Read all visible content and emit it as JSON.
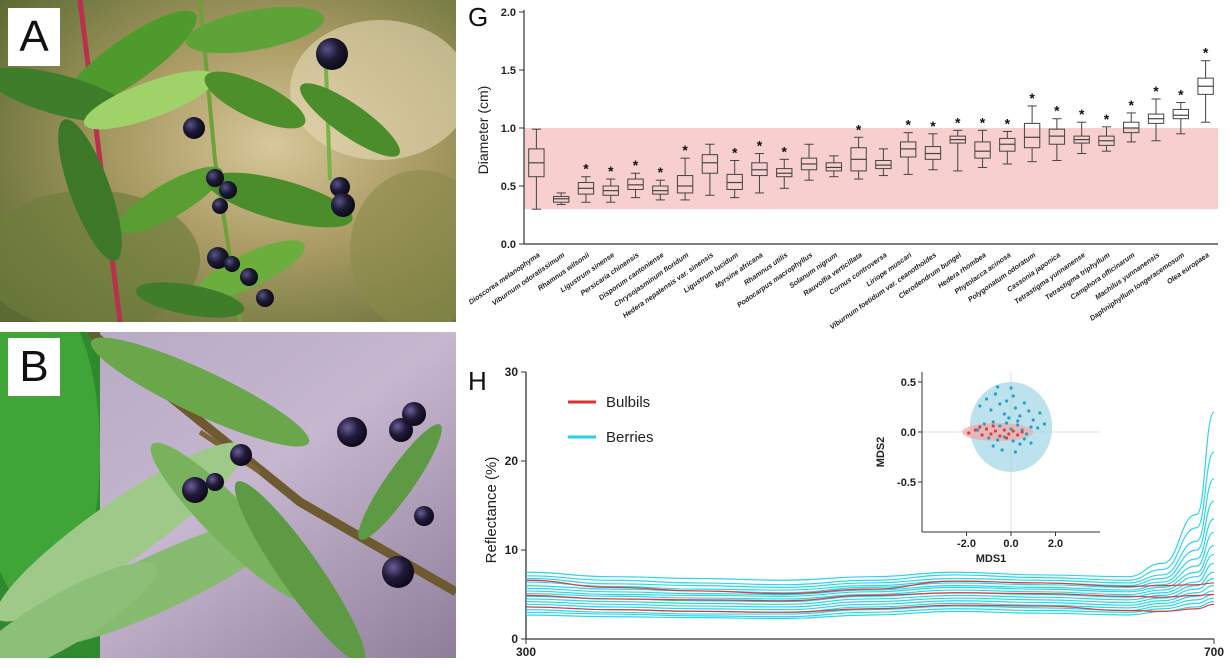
{
  "panels": {
    "a": "A",
    "b": "B",
    "g": "G",
    "h": "H"
  },
  "colors": {
    "reference_band": "#f7cfcf",
    "bulbils": "#e03131",
    "berries": "#22d3e6",
    "box": "#444444",
    "leaf_dark": "#3f7d2a",
    "leaf_light": "#9fd36a",
    "berry": "#1d1a33"
  },
  "chart_data": [
    {
      "type": "box",
      "panel": "G",
      "ylabel": "Diameter (cm)",
      "ylim": [
        0.0,
        2.0
      ],
      "yticks": [
        "0.0",
        "0.5",
        "1.0",
        "1.5",
        "2.0"
      ],
      "reference_band": [
        0.3,
        1.0
      ],
      "significance_mark": "*",
      "categories": [
        "Dioscorea melanophyma",
        "Viburnum odoratissimum",
        "Rhamnus wilsonii",
        "Ligustrum sinense",
        "Persicaria chinensis",
        "Disporum cantoniense",
        "Chrysojasminum floridum",
        "Hedera nepalensis var. sinensis",
        "Ligustrum lucidum",
        "Myrsine africana",
        "Rhamnus utilis",
        "Podocarpus macrophyllus",
        "Solanum nigrum",
        "Rauvolfia verticillata",
        "Cornus controversa",
        "Liriope muscari",
        "Viburnum foetidum var. ceanothoides",
        "Clerodendrum bungei",
        "Hedera rhombea",
        "Phytolacca acinosa",
        "Polygonatum odoratum",
        "Cassonia japonica",
        "Tetrastigma yunnanense",
        "Tetrastigma triphyllum",
        "Camphora officinarum",
        "Machilus yunnanensis",
        "Daphniphyllum longeracemosum",
        "Olea europaea"
      ],
      "boxes": [
        {
          "min": 0.3,
          "q1": 0.58,
          "median": 0.7,
          "q3": 0.82,
          "max": 0.99,
          "sig": false
        },
        {
          "min": 0.34,
          "q1": 0.36,
          "median": 0.39,
          "q3": 0.41,
          "max": 0.44,
          "sig": false
        },
        {
          "min": 0.36,
          "q1": 0.43,
          "median": 0.48,
          "q3": 0.53,
          "max": 0.58,
          "sig": true
        },
        {
          "min": 0.36,
          "q1": 0.42,
          "median": 0.46,
          "q3": 0.5,
          "max": 0.56,
          "sig": true
        },
        {
          "min": 0.4,
          "q1": 0.47,
          "median": 0.51,
          "q3": 0.56,
          "max": 0.61,
          "sig": true
        },
        {
          "min": 0.38,
          "q1": 0.43,
          "median": 0.46,
          "q3": 0.5,
          "max": 0.55,
          "sig": true
        },
        {
          "min": 0.38,
          "q1": 0.44,
          "median": 0.5,
          "q3": 0.59,
          "max": 0.74,
          "sig": true
        },
        {
          "min": 0.42,
          "q1": 0.61,
          "median": 0.7,
          "q3": 0.77,
          "max": 0.86,
          "sig": false
        },
        {
          "min": 0.4,
          "q1": 0.47,
          "median": 0.53,
          "q3": 0.6,
          "max": 0.72,
          "sig": true
        },
        {
          "min": 0.44,
          "q1": 0.59,
          "median": 0.64,
          "q3": 0.7,
          "max": 0.78,
          "sig": true
        },
        {
          "min": 0.48,
          "q1": 0.58,
          "median": 0.61,
          "q3": 0.65,
          "max": 0.73,
          "sig": true
        },
        {
          "min": 0.55,
          "q1": 0.64,
          "median": 0.69,
          "q3": 0.74,
          "max": 0.86,
          "sig": false
        },
        {
          "min": 0.58,
          "q1": 0.63,
          "median": 0.66,
          "q3": 0.7,
          "max": 0.76,
          "sig": false
        },
        {
          "min": 0.56,
          "q1": 0.63,
          "median": 0.73,
          "q3": 0.83,
          "max": 0.92,
          "sig": true
        },
        {
          "min": 0.59,
          "q1": 0.65,
          "median": 0.68,
          "q3": 0.72,
          "max": 0.82,
          "sig": false
        },
        {
          "min": 0.6,
          "q1": 0.75,
          "median": 0.82,
          "q3": 0.88,
          "max": 0.96,
          "sig": true
        },
        {
          "min": 0.64,
          "q1": 0.73,
          "median": 0.78,
          "q3": 0.84,
          "max": 0.95,
          "sig": true
        },
        {
          "min": 0.63,
          "q1": 0.87,
          "median": 0.9,
          "q3": 0.93,
          "max": 0.98,
          "sig": true
        },
        {
          "min": 0.66,
          "q1": 0.74,
          "median": 0.8,
          "q3": 0.88,
          "max": 0.98,
          "sig": true
        },
        {
          "min": 0.69,
          "q1": 0.8,
          "median": 0.86,
          "q3": 0.91,
          "max": 0.97,
          "sig": true
        },
        {
          "min": 0.71,
          "q1": 0.83,
          "median": 0.92,
          "q3": 1.04,
          "max": 1.19,
          "sig": true
        },
        {
          "min": 0.72,
          "q1": 0.86,
          "median": 0.93,
          "q3": 0.99,
          "max": 1.08,
          "sig": true
        },
        {
          "min": 0.78,
          "q1": 0.87,
          "median": 0.9,
          "q3": 0.93,
          "max": 1.05,
          "sig": true
        },
        {
          "min": 0.8,
          "q1": 0.85,
          "median": 0.89,
          "q3": 0.93,
          "max": 1.01,
          "sig": true
        },
        {
          "min": 0.88,
          "q1": 0.96,
          "median": 1.0,
          "q3": 1.05,
          "max": 1.13,
          "sig": true
        },
        {
          "min": 0.89,
          "q1": 1.04,
          "median": 1.08,
          "q3": 1.12,
          "max": 1.25,
          "sig": true
        },
        {
          "min": 0.95,
          "q1": 1.08,
          "median": 1.11,
          "q3": 1.16,
          "max": 1.22,
          "sig": true
        },
        {
          "min": 1.05,
          "q1": 1.29,
          "median": 1.36,
          "q3": 1.43,
          "max": 1.58,
          "sig": true
        }
      ]
    },
    {
      "type": "line",
      "panel": "H",
      "ylabel": "Reflectance (%)",
      "ylim": [
        0,
        30
      ],
      "yticks": [
        "0",
        "10",
        "20",
        "30"
      ],
      "xlim": [
        300,
        700
      ],
      "xticks": [
        "300",
        "700"
      ],
      "legend": [
        "Bulbils",
        "Berries"
      ],
      "x": [
        300,
        350,
        400,
        450,
        500,
        550,
        600,
        650,
        670,
        690,
        700
      ],
      "series": [
        {
          "name": "Bulbils",
          "values": [
            6.6,
            5.8,
            5.4,
            5.1,
            5.6,
            6.5,
            6.3,
            5.9,
            6.0,
            6.1,
            6.3
          ]
        },
        {
          "name": "Bulbils",
          "values": [
            4.9,
            4.5,
            4.4,
            4.3,
            4.9,
            5.2,
            5.1,
            4.8,
            4.7,
            4.9,
            5.0
          ]
        },
        {
          "name": "Bulbils",
          "values": [
            3.6,
            3.3,
            3.1,
            3.0,
            3.4,
            3.8,
            3.7,
            3.2,
            3.1,
            3.4,
            3.9
          ]
        },
        {
          "name": "Berries",
          "values": [
            7.5,
            7.0,
            6.8,
            6.6,
            7.0,
            7.5,
            7.2,
            7.0,
            8.5,
            14.0,
            25.5
          ]
        },
        {
          "name": "Berries",
          "values": [
            7.1,
            6.6,
            6.3,
            6.1,
            6.6,
            7.2,
            6.9,
            6.6,
            7.8,
            12.5,
            21.0
          ]
        },
        {
          "name": "Berries",
          "values": [
            6.8,
            6.2,
            6.0,
            5.8,
            6.3,
            6.8,
            6.6,
            6.3,
            7.2,
            11.0,
            18.0
          ]
        },
        {
          "name": "Berries",
          "values": [
            6.4,
            5.9,
            5.6,
            5.5,
            6.0,
            6.5,
            6.3,
            6.0,
            6.8,
            10.0,
            15.5
          ]
        },
        {
          "name": "Berries",
          "values": [
            6.0,
            5.6,
            5.4,
            5.2,
            5.8,
            6.3,
            6.1,
            5.8,
            6.4,
            9.0,
            13.5
          ]
        },
        {
          "name": "Berries",
          "values": [
            5.7,
            5.3,
            5.1,
            5.0,
            5.5,
            6.0,
            5.8,
            5.5,
            6.1,
            8.2,
            12.0
          ]
        },
        {
          "name": "Berries",
          "values": [
            5.4,
            5.0,
            4.9,
            4.8,
            5.3,
            5.8,
            5.6,
            5.3,
            5.8,
            7.5,
            10.5
          ]
        },
        {
          "name": "Berries",
          "values": [
            5.1,
            4.8,
            4.6,
            4.5,
            5.0,
            5.5,
            5.3,
            5.0,
            5.5,
            7.0,
            9.5
          ]
        },
        {
          "name": "Berries",
          "values": [
            4.8,
            4.5,
            4.3,
            4.2,
            4.8,
            5.2,
            5.0,
            4.7,
            5.2,
            6.4,
            8.5
          ]
        },
        {
          "name": "Berries",
          "values": [
            4.5,
            4.2,
            4.0,
            3.9,
            4.5,
            4.9,
            4.7,
            4.4,
            4.9,
            6.0,
            7.5
          ]
        },
        {
          "name": "Berries",
          "values": [
            4.2,
            3.9,
            3.7,
            3.6,
            4.2,
            4.6,
            4.4,
            4.1,
            4.6,
            5.6,
            6.8
          ]
        },
        {
          "name": "Berries",
          "values": [
            3.9,
            3.6,
            3.4,
            3.3,
            3.9,
            4.3,
            4.1,
            3.8,
            4.3,
            5.2,
            6.0
          ]
        },
        {
          "name": "Berries",
          "values": [
            3.6,
            3.3,
            3.1,
            3.0,
            3.6,
            4.0,
            3.8,
            3.5,
            4.0,
            4.8,
            5.4
          ]
        },
        {
          "name": "Berries",
          "values": [
            3.3,
            3.0,
            2.8,
            2.8,
            3.3,
            3.7,
            3.5,
            3.2,
            3.7,
            4.4,
            5.0
          ]
        },
        {
          "name": "Berries",
          "values": [
            3.0,
            2.8,
            2.6,
            2.5,
            3.0,
            3.4,
            3.2,
            3.0,
            3.4,
            4.0,
            4.6
          ]
        },
        {
          "name": "Berries",
          "values": [
            2.7,
            2.5,
            2.4,
            2.3,
            2.7,
            3.1,
            2.9,
            2.7,
            3.1,
            3.6,
            4.2
          ]
        }
      ]
    },
    {
      "type": "scatter",
      "panel": "H-inset",
      "xlabel": "MDS1",
      "ylabel": "MDS2",
      "xlim": [
        -4.0,
        4.0
      ],
      "ylim": [
        -1.0,
        0.6
      ],
      "xticks": [
        "-2.0",
        "0.0",
        "2.0"
      ],
      "yticks": [
        "0.5",
        "0.0",
        "-0.5"
      ],
      "berries_hull": {
        "cx": 0.0,
        "cy": 0.05,
        "rx": 1.85,
        "ry": 0.45
      },
      "bulbils_hull": {
        "cx": -0.6,
        "cy": 0.0,
        "rx": 1.6,
        "ry": 0.09
      },
      "berries_points": [
        [
          -1.4,
          0.26
        ],
        [
          -1.1,
          0.33
        ],
        [
          -0.9,
          0.22
        ],
        [
          -0.7,
          0.38
        ],
        [
          -0.5,
          0.28
        ],
        [
          -0.3,
          0.18
        ],
        [
          -0.2,
          0.31
        ],
        [
          0.1,
          0.36
        ],
        [
          0.2,
          0.24
        ],
        [
          0.4,
          0.16
        ],
        [
          0.6,
          0.29
        ],
        [
          0.8,
          0.21
        ],
        [
          1.0,
          0.12
        ],
        [
          1.3,
          0.19
        ],
        [
          -1.2,
          0.08
        ],
        [
          -0.8,
          0.1
        ],
        [
          -0.5,
          0.06
        ],
        [
          -0.2,
          0.09
        ],
        [
          0.0,
          0.03
        ],
        [
          0.3,
          0.07
        ],
        [
          0.5,
          0.02
        ],
        [
          0.7,
          -0.02
        ],
        [
          0.9,
          0.05
        ],
        [
          1.2,
          0.04
        ],
        [
          -1.0,
          -0.06
        ],
        [
          -0.6,
          -0.08
        ],
        [
          -0.3,
          -0.05
        ],
        [
          0.1,
          -0.09
        ],
        [
          0.4,
          -0.12
        ],
        [
          0.6,
          -0.07
        ],
        [
          -0.4,
          -0.18
        ],
        [
          0.2,
          -0.2
        ],
        [
          -0.8,
          -0.14
        ],
        [
          0.9,
          -0.11
        ],
        [
          -0.1,
          0.14
        ],
        [
          0.3,
          0.11
        ],
        [
          -1.5,
          0.02
        ],
        [
          1.5,
          0.08
        ],
        [
          0.0,
          0.44
        ],
        [
          -0.6,
          0.45
        ]
      ],
      "bulbils_points": [
        [
          -1.9,
          -0.01
        ],
        [
          -1.6,
          0.02
        ],
        [
          -1.3,
          -0.03
        ],
        [
          -1.1,
          0.03
        ],
        [
          -0.9,
          -0.02
        ],
        [
          -0.7,
          0.01
        ],
        [
          -0.5,
          -0.04
        ],
        [
          -0.3,
          0.02
        ],
        [
          -0.1,
          -0.02
        ],
        [
          0.1,
          0.01
        ],
        [
          0.3,
          -0.03
        ],
        [
          0.5,
          0.0
        ],
        [
          -1.4,
          0.05
        ],
        [
          -0.8,
          0.06
        ],
        [
          -0.2,
          -0.06
        ]
      ]
    }
  ]
}
